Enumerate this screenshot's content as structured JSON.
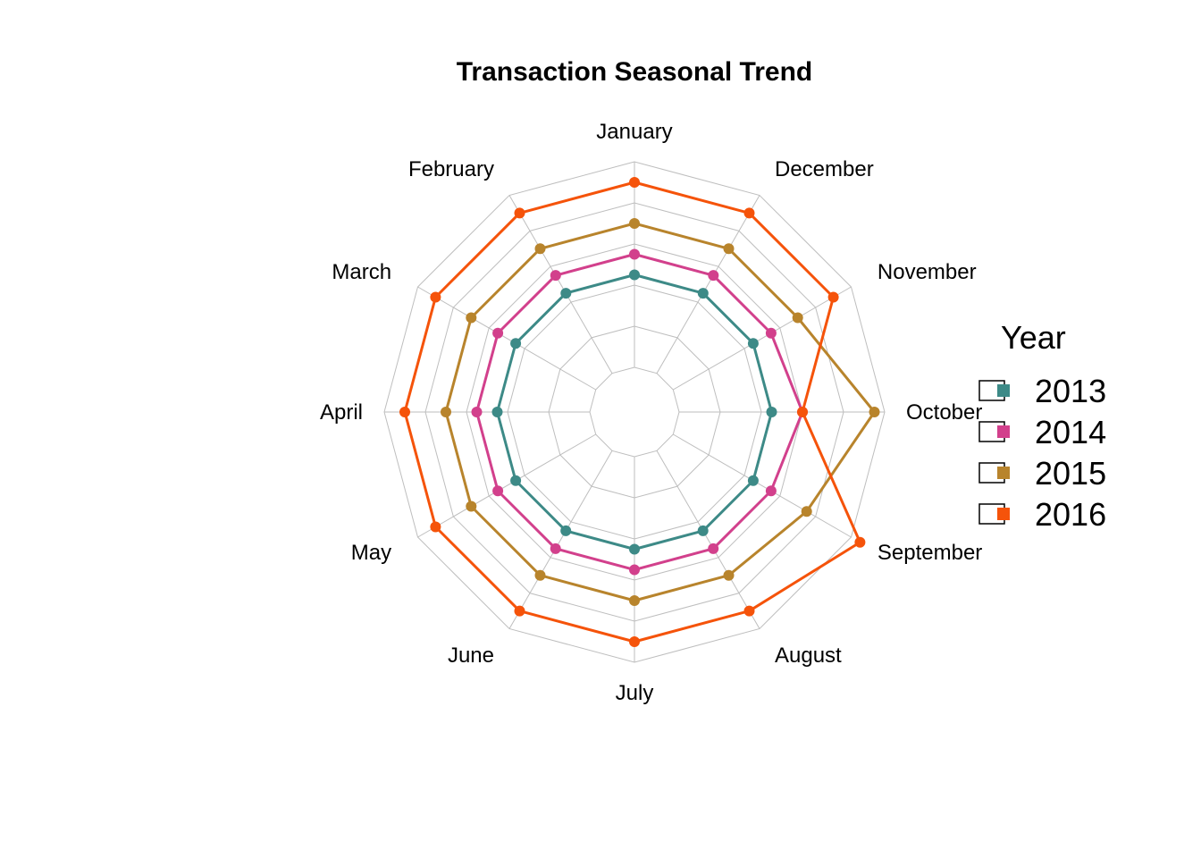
{
  "chart_data": {
    "type": "radar",
    "title": "Transaction Seasonal Trend",
    "categories": [
      "January",
      "February",
      "March",
      "April",
      "May",
      "June",
      "July",
      "August",
      "September",
      "October",
      "November",
      "December"
    ],
    "rlim": [
      0,
      5
    ],
    "grid": true,
    "legend_title": "Year",
    "legend_position": "right",
    "series": [
      {
        "name": "2013",
        "color": "#3D8A87",
        "values": [
          2.25,
          2.25,
          2.25,
          2.25,
          2.25,
          2.25,
          2.25,
          2.25,
          2.25,
          2.25,
          2.25,
          2.25
        ]
      },
      {
        "name": "2014",
        "color": "#D2408C",
        "values": [
          2.75,
          2.75,
          2.75,
          2.75,
          2.75,
          2.75,
          2.75,
          2.75,
          2.75,
          3.0,
          2.75,
          2.75
        ]
      },
      {
        "name": "2015",
        "color": "#B8842C",
        "values": [
          3.5,
          3.5,
          3.5,
          3.5,
          3.5,
          3.5,
          3.5,
          3.5,
          3.75,
          4.75,
          3.5,
          3.5
        ]
      },
      {
        "name": "2016",
        "color": "#F5530A",
        "values": [
          4.5,
          4.5,
          4.5,
          4.5,
          4.5,
          4.5,
          4.5,
          4.5,
          5.25,
          3.0,
          4.5,
          4.5
        ]
      }
    ]
  }
}
